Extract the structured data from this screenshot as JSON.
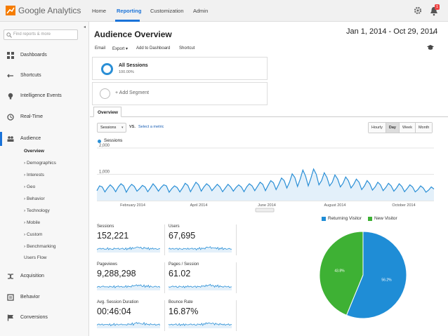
{
  "app": {
    "title": "Google Analytics"
  },
  "nav": {
    "items": [
      "Home",
      "Reporting",
      "Customization",
      "Admin"
    ],
    "active": "Reporting"
  },
  "notifications": {
    "count": "1"
  },
  "search": {
    "placeholder": "Find reports & more"
  },
  "sidebar": {
    "items": [
      {
        "label": "Dashboards",
        "icon": "grid-icon"
      },
      {
        "label": "Shortcuts",
        "icon": "arrow-left-right-icon"
      },
      {
        "label": "Intelligence Events",
        "icon": "lightbulb-icon"
      },
      {
        "label": "Real-Time",
        "icon": "clock-icon"
      },
      {
        "label": "Audience",
        "icon": "people-icon"
      },
      {
        "label": "Acquisition",
        "icon": "split-arrow-icon"
      },
      {
        "label": "Behavior",
        "icon": "page-icon"
      },
      {
        "label": "Conversions",
        "icon": "flag-icon"
      }
    ],
    "audience_sub": [
      "Overview",
      "Demographics",
      "Interests",
      "Geo",
      "Behavior",
      "Technology",
      "Mobile",
      "Custom",
      "Benchmarking",
      "Users Flow"
    ]
  },
  "page": {
    "title": "Audience Overview",
    "date_range": "Jan 1, 2014 - Oct 29, 2014"
  },
  "toolbar": {
    "email": "Email",
    "export": "Export",
    "add_dashboard": "Add to Dashboard",
    "shortcut": "Shortcut"
  },
  "segments": {
    "all_title": "All Sessions",
    "all_pct": "100.00%",
    "add_label": "+ Add Segment"
  },
  "tabs": {
    "overview": "Overview"
  },
  "metric_selector": {
    "selected": "Sessions",
    "vs": "VS.",
    "select_metric": "Select a metric"
  },
  "granularity": {
    "options": [
      "Hourly",
      "Day",
      "Week",
      "Month"
    ],
    "selected": "Day"
  },
  "colors": {
    "accent": "#1a73d9",
    "line": "#2a8fd6",
    "returning": "#1f8dd6",
    "new": "#3eb134"
  },
  "chart_data": {
    "type": "line",
    "series": [
      {
        "name": "Sessions",
        "values": [
          380,
          560,
          520,
          330,
          480,
          600,
          500,
          340,
          520,
          640,
          560,
          320,
          500,
          620,
          540,
          360,
          460,
          580,
          520,
          340,
          480,
          640,
          520,
          360,
          500,
          600,
          560,
          320,
          460,
          560,
          500,
          330,
          480,
          660,
          580,
          340,
          520,
          700,
          600,
          360,
          520,
          640,
          560,
          380,
          500,
          620,
          520,
          340,
          480,
          620,
          520,
          360,
          500,
          600,
          520,
          340,
          520,
          640,
          560,
          380,
          540,
          700,
          620,
          380,
          580,
          760,
          680,
          420,
          620,
          860,
          760,
          480,
          700,
          1020,
          880,
          540,
          820,
          1160,
          940,
          560,
          860,
          1200,
          1000,
          600,
          760,
          1060,
          880,
          560,
          700,
          980,
          820,
          520,
          660,
          900,
          760,
          480,
          620,
          820,
          700,
          420,
          560,
          760,
          640,
          400,
          520,
          700,
          600,
          380,
          500,
          660,
          560,
          360,
          480,
          640,
          540,
          340,
          460,
          600,
          520,
          330,
          420,
          560,
          480,
          320,
          400,
          520,
          440
        ]
      }
    ],
    "x_labels": [
      "February 2014",
      "April 2014",
      "June 2014",
      "August 2014",
      "October 2014"
    ],
    "y_ticks": [
      "2,000",
      "1,000"
    ],
    "ylim": [
      0,
      2000
    ]
  },
  "stats": [
    {
      "label": "Sessions",
      "value": "152,221"
    },
    {
      "label": "Users",
      "value": "67,695"
    },
    {
      "label": "Pageviews",
      "value": "9,288,298"
    },
    {
      "label": "Pages / Session",
      "value": "61.02"
    },
    {
      "label": "Avg. Session Duration",
      "value": "00:46:04"
    },
    {
      "label": "Bounce Rate",
      "value": "16.87%"
    }
  ],
  "pie": {
    "type": "pie",
    "legend": [
      "Returning Visitor",
      "New Visitor"
    ],
    "slices": [
      {
        "name": "Returning Visitor",
        "value": 56.2,
        "label": "56.2%"
      },
      {
        "name": "New Visitor",
        "value": 43.8,
        "label": "43.8%"
      }
    ]
  }
}
